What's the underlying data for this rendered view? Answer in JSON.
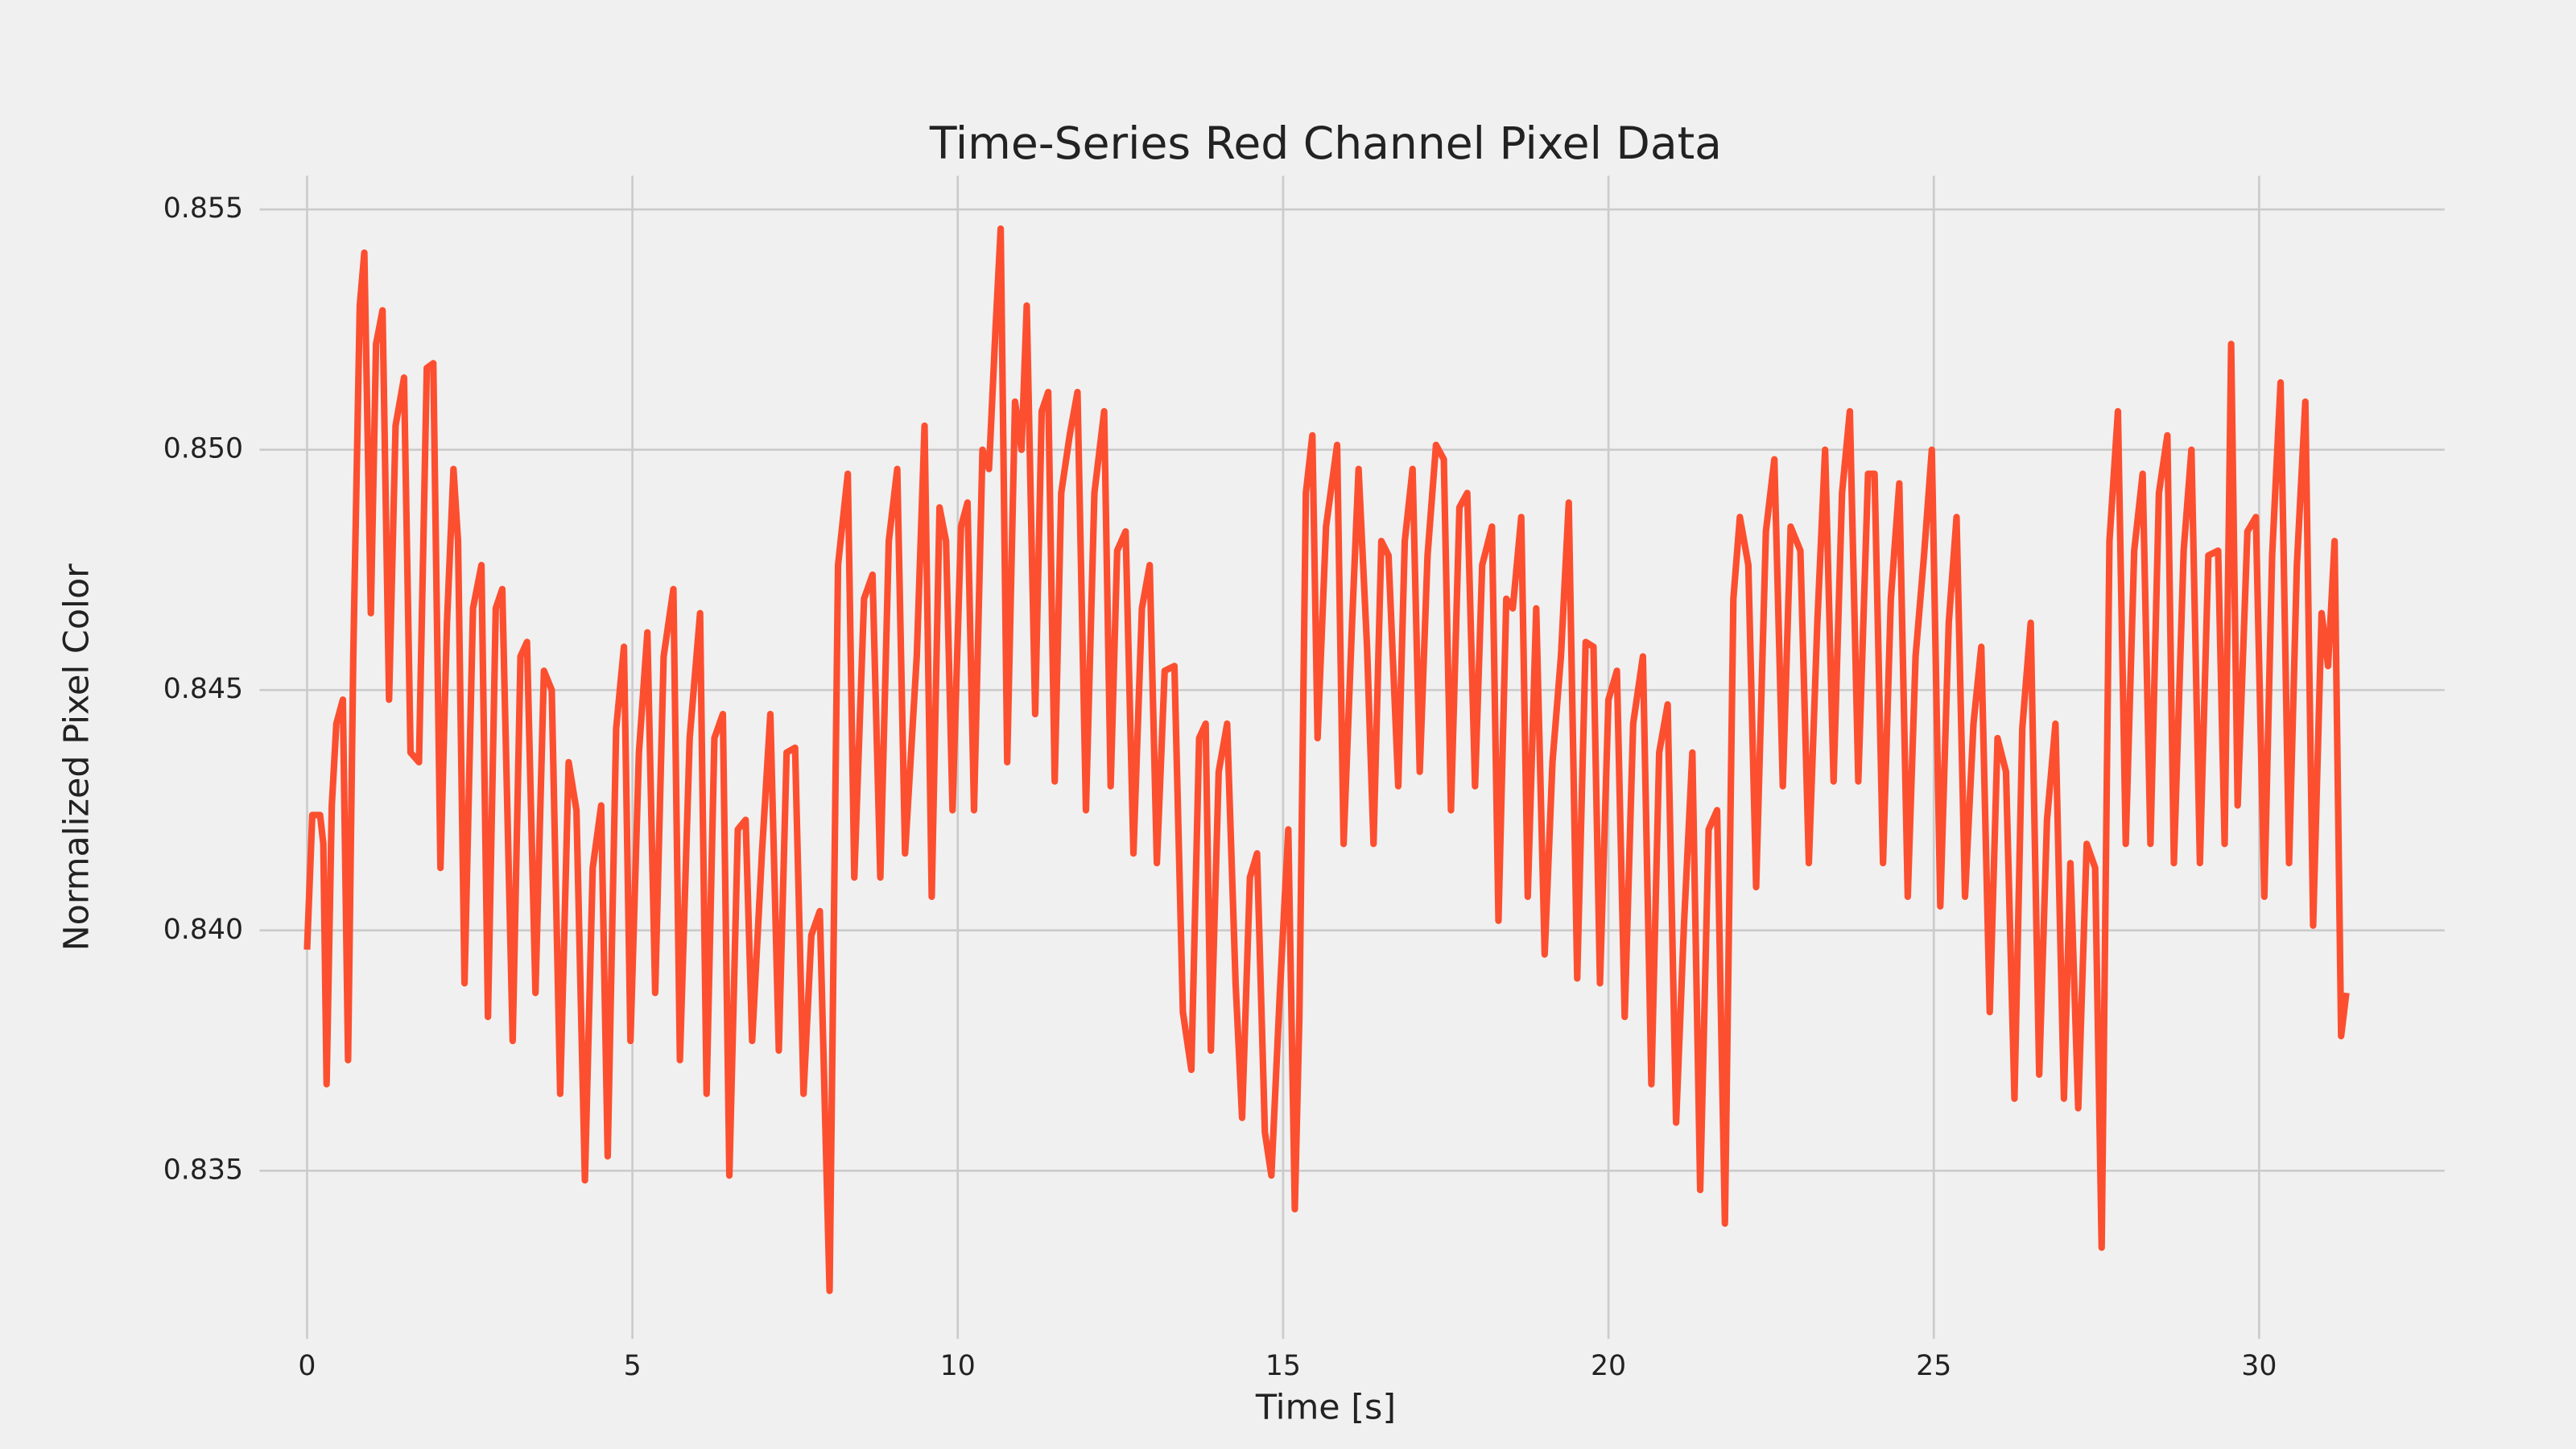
{
  "chart_data": {
    "type": "line",
    "title": "Time-Series Red Channel Pixel Data",
    "xlabel": "Time [s]",
    "ylabel": "Normalized Pixel Color",
    "xlim": [
      -0.73,
      32.85
    ],
    "ylim": [
      0.8315,
      0.8557
    ],
    "xticks": [
      0,
      5,
      10,
      15,
      20,
      25,
      30
    ],
    "yticks": [
      0.835,
      {
        "value": 0.84,
        "label": "0.840"
      },
      0.845,
      {
        "value": 0.85,
        "label": "0.850"
      },
      0.855
    ],
    "grid": true,
    "x": [
      0,
      0.08,
      0.2,
      0.25,
      0.3,
      0.38,
      0.45,
      0.55,
      0.63,
      0.71,
      0.81,
      0.88,
      0.98,
      1.06,
      1.16,
      1.26,
      1.36,
      1.49,
      1.59,
      1.72,
      1.84,
      1.94,
      2.05,
      2.15,
      2.25,
      2.32,
      2.42,
      2.55,
      2.68,
      2.78,
      2.9,
      3.0,
      3.16,
      3.28,
      3.38,
      3.51,
      3.64,
      3.76,
      3.89,
      4.02,
      4.14,
      4.27,
      4.39,
      4.52,
      4.62,
      4.75,
      4.87,
      4.97,
      5.1,
      5.23,
      5.35,
      5.48,
      5.63,
      5.73,
      5.88,
      6.04,
      6.14,
      6.26,
      6.39,
      6.49,
      6.62,
      6.74,
      6.84,
      6.99,
      7.12,
      7.25,
      7.37,
      7.5,
      7.63,
      7.75,
      7.88,
      8.03,
      8.16,
      8.31,
      8.41,
      8.56,
      8.69,
      8.81,
      8.94,
      9.07,
      9.19,
      9.37,
      9.49,
      9.6,
      9.72,
      9.82,
      9.92,
      10.05,
      10.15,
      10.25,
      10.38,
      10.48,
      10.58,
      10.66,
      10.76,
      10.88,
      10.98,
      11.06,
      11.19,
      11.29,
      11.39,
      11.49,
      11.59,
      11.72,
      11.84,
      11.97,
      12.1,
      12.25,
      12.35,
      12.45,
      12.58,
      12.7,
      12.83,
      12.95,
      13.06,
      13.18,
      13.33,
      13.46,
      13.59,
      13.71,
      13.81,
      13.89,
      14.01,
      14.14,
      14.27,
      14.37,
      14.49,
      14.6,
      14.72,
      14.82,
      14.95,
      15.08,
      15.18,
      15.25,
      15.35,
      15.45,
      15.53,
      15.66,
      15.83,
      15.93,
      16.06,
      16.16,
      16.29,
      16.39,
      16.51,
      16.62,
      16.77,
      16.87,
      16.99,
      17.1,
      17.22,
      17.35,
      17.47,
      17.58,
      17.71,
      17.83,
      17.95,
      18.06,
      18.21,
      18.31,
      18.43,
      18.53,
      18.66,
      18.76,
      18.89,
      19.02,
      19.14,
      19.27,
      19.39,
      19.52,
      19.65,
      19.77,
      19.87,
      20.0,
      20.13,
      20.25,
      20.38,
      20.53,
      20.66,
      20.78,
      20.91,
      21.04,
      21.16,
      21.29,
      21.41,
      21.54,
      21.67,
      21.79,
      21.92,
      22.02,
      22.15,
      22.27,
      22.42,
      22.55,
      22.68,
      22.8,
      22.95,
      23.08,
      23.21,
      23.33,
      23.46,
      23.59,
      23.71,
      23.84,
      23.99,
      24.09,
      24.22,
      24.34,
      24.47,
      24.6,
      24.72,
      24.85,
      24.97,
      25.1,
      25.23,
      25.35,
      25.48,
      25.61,
      25.73,
      25.86,
      25.98,
      26.11,
      26.24,
      26.36,
      26.49,
      26.62,
      26.74,
      26.87,
      27.0,
      27.1,
      27.22,
      27.35,
      27.48,
      27.58,
      27.7,
      27.83,
      27.95,
      28.08,
      28.21,
      28.33,
      28.46,
      28.59,
      28.69,
      28.84,
      28.96,
      29.09,
      29.22,
      29.37,
      29.47,
      29.57,
      29.67,
      29.82,
      29.95,
      30.08,
      30.2,
      30.33,
      30.46,
      30.58,
      30.71,
      30.83,
      30.96,
      31.06,
      31.16,
      31.26,
      31.34
    ],
    "series": [
      {
        "color": "#fc4f30",
        "values": [
          0.8396,
          0.8424,
          0.8424,
          0.8418,
          0.8368,
          0.8426,
          0.8443,
          0.8448,
          0.8373,
          0.8457,
          0.853,
          0.8541,
          0.8466,
          0.8522,
          0.8529,
          0.8448,
          0.8505,
          0.8515,
          0.8437,
          0.8435,
          0.8517,
          0.8518,
          0.8413,
          0.8464,
          0.8496,
          0.8481,
          0.8389,
          0.8467,
          0.8476,
          0.8382,
          0.8467,
          0.8471,
          0.8377,
          0.8457,
          0.846,
          0.8387,
          0.8454,
          0.845,
          0.8366,
          0.8435,
          0.8425,
          0.8348,
          0.8413,
          0.8426,
          0.8353,
          0.8442,
          0.8459,
          0.8377,
          0.8437,
          0.8462,
          0.8387,
          0.8457,
          0.8471,
          0.8373,
          0.844,
          0.8466,
          0.8366,
          0.844,
          0.8445,
          0.8349,
          0.8421,
          0.8423,
          0.8377,
          0.8416,
          0.8445,
          0.8375,
          0.8437,
          0.8438,
          0.8366,
          0.8399,
          0.8404,
          0.8325,
          0.8476,
          0.8495,
          0.8411,
          0.8469,
          0.8474,
          0.8411,
          0.8481,
          0.8496,
          0.8416,
          0.8457,
          0.8505,
          0.8407,
          0.8488,
          0.8481,
          0.8425,
          0.8484,
          0.8489,
          0.8425,
          0.85,
          0.8496,
          0.8525,
          0.8546,
          0.8435,
          0.851,
          0.85,
          0.853,
          0.8445,
          0.8508,
          0.8512,
          0.8431,
          0.8491,
          0.8503,
          0.8512,
          0.8425,
          0.8491,
          0.8508,
          0.843,
          0.8479,
          0.8483,
          0.8416,
          0.8467,
          0.8476,
          0.8414,
          0.8454,
          0.8455,
          0.8383,
          0.8371,
          0.844,
          0.8443,
          0.8375,
          0.8433,
          0.8443,
          0.8389,
          0.8361,
          0.8411,
          0.8416,
          0.8358,
          0.8349,
          0.8387,
          0.8421,
          0.8342,
          0.8382,
          0.8491,
          0.8503,
          0.844,
          0.8484,
          0.8501,
          0.8418,
          0.8464,
          0.8496,
          0.8459,
          0.8418,
          0.8481,
          0.8478,
          0.843,
          0.8481,
          0.8496,
          0.8433,
          0.8478,
          0.8501,
          0.8498,
          0.8425,
          0.8488,
          0.8491,
          0.843,
          0.8476,
          0.8484,
          0.8402,
          0.8469,
          0.8467,
          0.8486,
          0.8407,
          0.8467,
          0.8395,
          0.8435,
          0.8457,
          0.8489,
          0.839,
          0.846,
          0.8459,
          0.8389,
          0.8448,
          0.8454,
          0.8382,
          0.8443,
          0.8457,
          0.8368,
          0.8437,
          0.8447,
          0.836,
          0.8401,
          0.8437,
          0.8346,
          0.8421,
          0.8425,
          0.8339,
          0.8469,
          0.8486,
          0.8476,
          0.8409,
          0.8483,
          0.8498,
          0.843,
          0.8484,
          0.8479,
          0.8414,
          0.8464,
          0.85,
          0.8431,
          0.8491,
          0.8508,
          0.8431,
          0.8495,
          0.8495,
          0.8414,
          0.8469,
          0.8493,
          0.8407,
          0.8457,
          0.8478,
          0.85,
          0.8405,
          0.8464,
          0.8486,
          0.8407,
          0.8443,
          0.8459,
          0.8383,
          0.844,
          0.8433,
          0.8365,
          0.8442,
          0.8464,
          0.837,
          0.8423,
          0.8443,
          0.8365,
          0.8414,
          0.8363,
          0.8418,
          0.8413,
          0.8334,
          0.8481,
          0.8508,
          0.8418,
          0.8479,
          0.8495,
          0.8418,
          0.8491,
          0.8503,
          0.8414,
          0.8479,
          0.85,
          0.8414,
          0.8478,
          0.8479,
          0.8418,
          0.8522,
          0.8426,
          0.8483,
          0.8486,
          0.8407,
          0.8478,
          0.8514,
          0.8414,
          0.8476,
          0.851,
          0.8401,
          0.8466,
          0.8455,
          0.8481,
          0.8378,
          0.8387
        ]
      }
    ]
  }
}
